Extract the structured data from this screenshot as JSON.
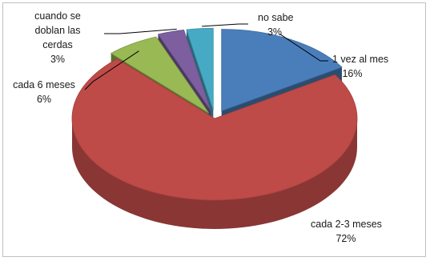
{
  "chart_data": {
    "type": "pie",
    "style": "3d-exploded",
    "title": "",
    "legend": "none",
    "slices": [
      {
        "label": "1 vez al mes",
        "value": 16,
        "value_label": "16%",
        "color": "#4a7ebb"
      },
      {
        "label": "cada 2-3 meses",
        "value": 72,
        "value_label": "72%",
        "color": "#be4b48"
      },
      {
        "label": "cada 6 meses",
        "value": 6,
        "value_label": "6%",
        "color": "#98b954"
      },
      {
        "label": "cuando se doblan las cerdas",
        "label_lines": [
          "cuando se",
          "doblan las",
          "cerdas"
        ],
        "value": 3,
        "value_label": "3%",
        "color": "#7d5fa0"
      },
      {
        "label": "no sabe",
        "value": 3,
        "value_label": "3%",
        "color": "#46aac5"
      }
    ]
  }
}
